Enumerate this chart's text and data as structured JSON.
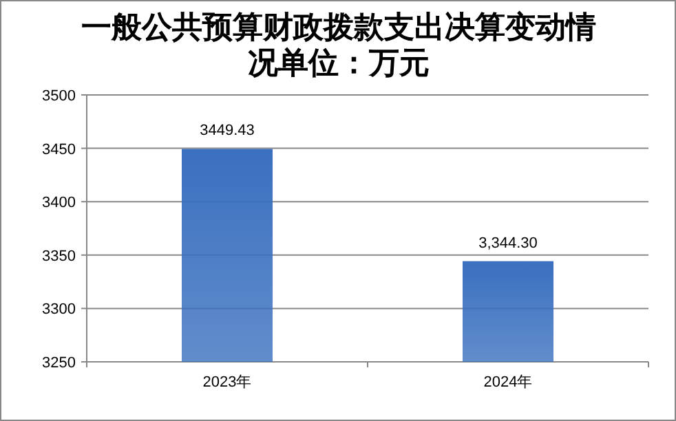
{
  "chart_data": {
    "type": "bar",
    "title": "一般公共预算财政拨款支出决算变动情况单位：万元",
    "categories": [
      "2023年",
      "2024年"
    ],
    "values": [
      3449.43,
      3344.3
    ],
    "value_labels": [
      "3449.43",
      "3,344.30"
    ],
    "color": "#3a70bf",
    "ylim": [
      3250,
      3500
    ],
    "yticks": [
      3250,
      3300,
      3350,
      3400,
      3450,
      3500
    ],
    "grid": "y"
  }
}
